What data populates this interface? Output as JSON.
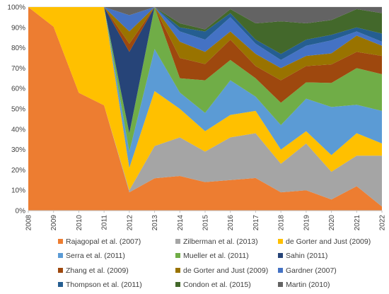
{
  "chart_data": {
    "type": "area",
    "stacked": true,
    "normalized": true,
    "x": [
      "2008",
      "2009",
      "2010",
      "2011",
      "2012",
      "2013",
      "2014",
      "2015",
      "2016",
      "2017",
      "2018",
      "2019",
      "2020",
      "2021",
      "2022"
    ],
    "ylim": [
      0,
      100
    ],
    "yticks": [
      "0%",
      "10%",
      "20%",
      "30%",
      "40%",
      "50%",
      "60%",
      "70%",
      "80%",
      "90%",
      "100%"
    ],
    "grid": true,
    "legend_position": "bottom",
    "title": "",
    "xlabel": "",
    "ylabel": "",
    "series": [
      {
        "name": "Rajagopal et al. (2007)",
        "color": "#ED7D31",
        "values": [
          45,
          47,
          22,
          15,
          9,
          10,
          17,
          14,
          15,
          16,
          9,
          10,
          6,
          12,
          2
        ]
      },
      {
        "name": "Zilberman et al. (2013)",
        "color": "#A5A5A5",
        "values": [
          0,
          0,
          0,
          0,
          1,
          10,
          19,
          15,
          21,
          22,
          14,
          23,
          15,
          15,
          25
        ]
      },
      {
        "name": "de Gorter and Just (2009)",
        "color": "#FFC000",
        "values": [
          0,
          5,
          16,
          14,
          11,
          17,
          14,
          10,
          11,
          11,
          7,
          6,
          9,
          11,
          6
        ]
      },
      {
        "name": "Serra et al. (2011)",
        "color": "#5B9BD5",
        "values": [
          0,
          0,
          0,
          0,
          8,
          13,
          8,
          9,
          17,
          7,
          12,
          16,
          26,
          14,
          16
        ]
      },
      {
        "name": "Mueller et al. (2011)",
        "color": "#70AD47",
        "values": [
          0,
          0,
          0,
          0,
          9,
          13,
          7,
          16,
          10,
          9,
          11,
          8,
          13,
          18,
          18
        ]
      },
      {
        "name": "Sahin (2011)",
        "color": "#264478",
        "values": [
          0,
          0,
          0,
          0,
          40,
          0,
          0,
          0,
          0,
          0,
          0,
          0,
          0,
          0,
          0
        ]
      },
      {
        "name": "Zhang et al. (2009)",
        "color": "#9E480E",
        "values": [
          0,
          0,
          0,
          0,
          4,
          0,
          10,
          8,
          10,
          6,
          11,
          8,
          10,
          8,
          9
        ]
      },
      {
        "name": "de Gorter and Just (2009)",
        "color": "#997300",
        "values": [
          0,
          0,
          0,
          0,
          6,
          0,
          8,
          6,
          4,
          6,
          6,
          5,
          6,
          8,
          5
        ]
      },
      {
        "name": "Gardner (2007)",
        "color": "#4472C4",
        "values": [
          0,
          0,
          0,
          0,
          8,
          0,
          5,
          6,
          7,
          5,
          4,
          5,
          7,
          2,
          2
        ]
      },
      {
        "name": "Thompson et al. (2011)",
        "color": "#255E91",
        "values": [
          0,
          0,
          0,
          0,
          0,
          0,
          2,
          4,
          2,
          2,
          3,
          3,
          3,
          2,
          4
        ]
      },
      {
        "name": "Condon et al. (2015)",
        "color": "#43682B",
        "values": [
          0,
          0,
          0,
          0,
          0,
          0,
          2,
          1,
          2,
          8,
          16,
          8,
          8,
          9,
          10
        ]
      },
      {
        "name": "Martin (2010)",
        "color": "#636363",
        "values": [
          0,
          0,
          0,
          0,
          4,
          0,
          8,
          11,
          1,
          8,
          7,
          8,
          7,
          1,
          3
        ]
      }
    ],
    "stack_values": [
      {
        "name": "Rajagopal et al. (2007)",
        "values": [
          45,
          47,
          22,
          15,
          9,
          10,
          17,
          14,
          15,
          16,
          9,
          10,
          6,
          12,
          2
        ]
      },
      {
        "name": "Zilberman et al. (2013)",
        "values": [
          0,
          0,
          0,
          0,
          1,
          10,
          19,
          15,
          21,
          22,
          14,
          23,
          15,
          15,
          25
        ]
      }
    ]
  }
}
